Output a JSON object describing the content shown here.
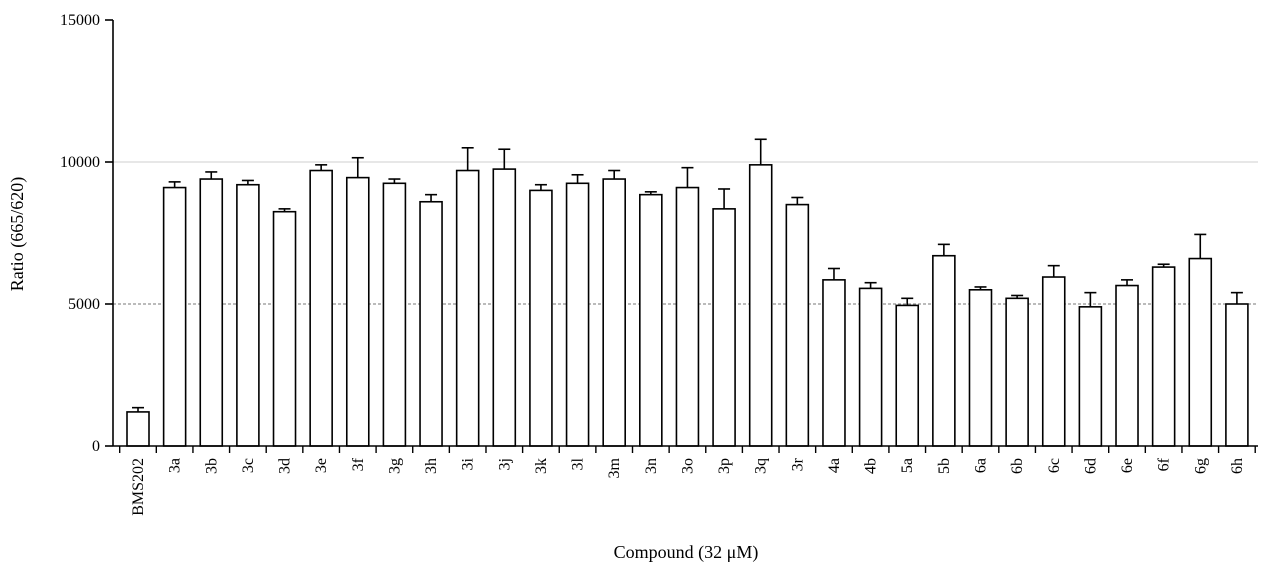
{
  "chart_data": {
    "type": "bar",
    "title": "",
    "xlabel": "Compound (32 μM)",
    "ylabel": "Ratio (665/620)",
    "ylim": [
      0,
      15000
    ],
    "yticks": [
      0,
      5000,
      10000,
      15000
    ],
    "grid": "horizontal",
    "reference_lines": [
      5000,
      10000
    ],
    "categories": [
      "BMS202",
      "3a",
      "3b",
      "3c",
      "3d",
      "3e",
      "3f",
      "3g",
      "3h",
      "3i",
      "3j",
      "3k",
      "3l",
      "3m",
      "3n",
      "3o",
      "3p",
      "3q",
      "3r",
      "4a",
      "4b",
      "5a",
      "5b",
      "6a",
      "6b",
      "6c",
      "6d",
      "6e",
      "6f",
      "6g",
      "6h"
    ],
    "values": [
      1200,
      9100,
      9400,
      9200,
      8250,
      9700,
      9450,
      9250,
      8600,
      9700,
      9750,
      9000,
      9250,
      9400,
      8850,
      9100,
      8350,
      9900,
      8500,
      5850,
      5550,
      4950,
      6700,
      5500,
      5200,
      5950,
      4900,
      5650,
      6300,
      6600,
      5000
    ],
    "errors": [
      150,
      200,
      250,
      150,
      100,
      200,
      700,
      150,
      250,
      800,
      700,
      200,
      300,
      300,
      100,
      700,
      700,
      900,
      250,
      400,
      200,
      250,
      400,
      100,
      100,
      400,
      500,
      200,
      100,
      850,
      400
    ]
  }
}
